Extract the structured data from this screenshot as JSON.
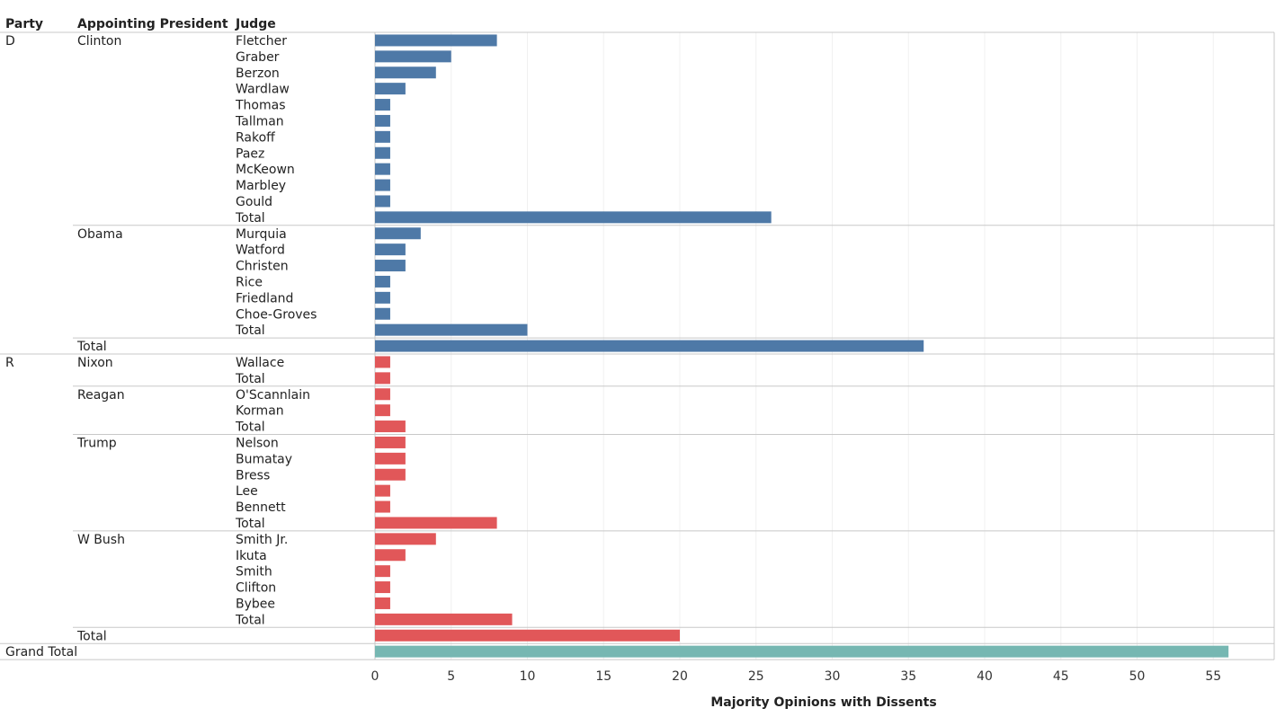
{
  "chart_data": {
    "type": "bar",
    "orientation": "horizontal",
    "headers": [
      "Party",
      "Appointing President",
      "Judge"
    ],
    "xlabel": "Majority Opinions with Dissents",
    "xlim": [
      0,
      57
    ],
    "xticks": [
      0,
      5,
      10,
      15,
      20,
      25,
      30,
      35,
      40,
      45,
      50,
      55
    ],
    "colors": {
      "D": "#4e79a7",
      "R": "#e15759",
      "grand_total": "#76b7b2"
    },
    "groups": [
      {
        "party": "D",
        "presidents": [
          {
            "name": "Clinton",
            "judges": [
              {
                "judge": "Fletcher",
                "value": 8
              },
              {
                "judge": "Graber",
                "value": 5
              },
              {
                "judge": "Berzon",
                "value": 4
              },
              {
                "judge": "Wardlaw",
                "value": 2
              },
              {
                "judge": "Thomas",
                "value": 1
              },
              {
                "judge": "Tallman",
                "value": 1
              },
              {
                "judge": "Rakoff",
                "value": 1
              },
              {
                "judge": "Paez",
                "value": 1
              },
              {
                "judge": "McKeown",
                "value": 1
              },
              {
                "judge": "Marbley",
                "value": 1
              },
              {
                "judge": "Gould",
                "value": 1
              }
            ],
            "total_label": "Total",
            "total": 26
          },
          {
            "name": "Obama",
            "judges": [
              {
                "judge": "Murquia",
                "value": 3
              },
              {
                "judge": "Watford",
                "value": 2
              },
              {
                "judge": "Christen",
                "value": 2
              },
              {
                "judge": "Rice",
                "value": 1
              },
              {
                "judge": "Friedland",
                "value": 1
              },
              {
                "judge": "Choe-Groves",
                "value": 1
              }
            ],
            "total_label": "Total",
            "total": 10
          }
        ],
        "total_label": "Total",
        "total": 36
      },
      {
        "party": "R",
        "presidents": [
          {
            "name": "Nixon",
            "judges": [
              {
                "judge": "Wallace",
                "value": 1
              }
            ],
            "total_label": "Total",
            "total": 1
          },
          {
            "name": "Reagan",
            "judges": [
              {
                "judge": "O'Scannlain",
                "value": 1
              },
              {
                "judge": "Korman",
                "value": 1
              }
            ],
            "total_label": "Total",
            "total": 2
          },
          {
            "name": "Trump",
            "judges": [
              {
                "judge": "Nelson",
                "value": 2
              },
              {
                "judge": "Bumatay",
                "value": 2
              },
              {
                "judge": "Bress",
                "value": 2
              },
              {
                "judge": "Lee",
                "value": 1
              },
              {
                "judge": "Bennett",
                "value": 1
              }
            ],
            "total_label": "Total",
            "total": 8
          },
          {
            "name": "W Bush",
            "judges": [
              {
                "judge": "Smith Jr.",
                "value": 4
              },
              {
                "judge": "Ikuta",
                "value": 2
              },
              {
                "judge": "Smith",
                "value": 1
              },
              {
                "judge": "Clifton",
                "value": 1
              },
              {
                "judge": "Bybee",
                "value": 1
              }
            ],
            "total_label": "Total",
            "total": 9
          }
        ],
        "total_label": "Total",
        "total": 20
      }
    ],
    "grand_total_label": "Grand Total",
    "grand_total": 56
  }
}
